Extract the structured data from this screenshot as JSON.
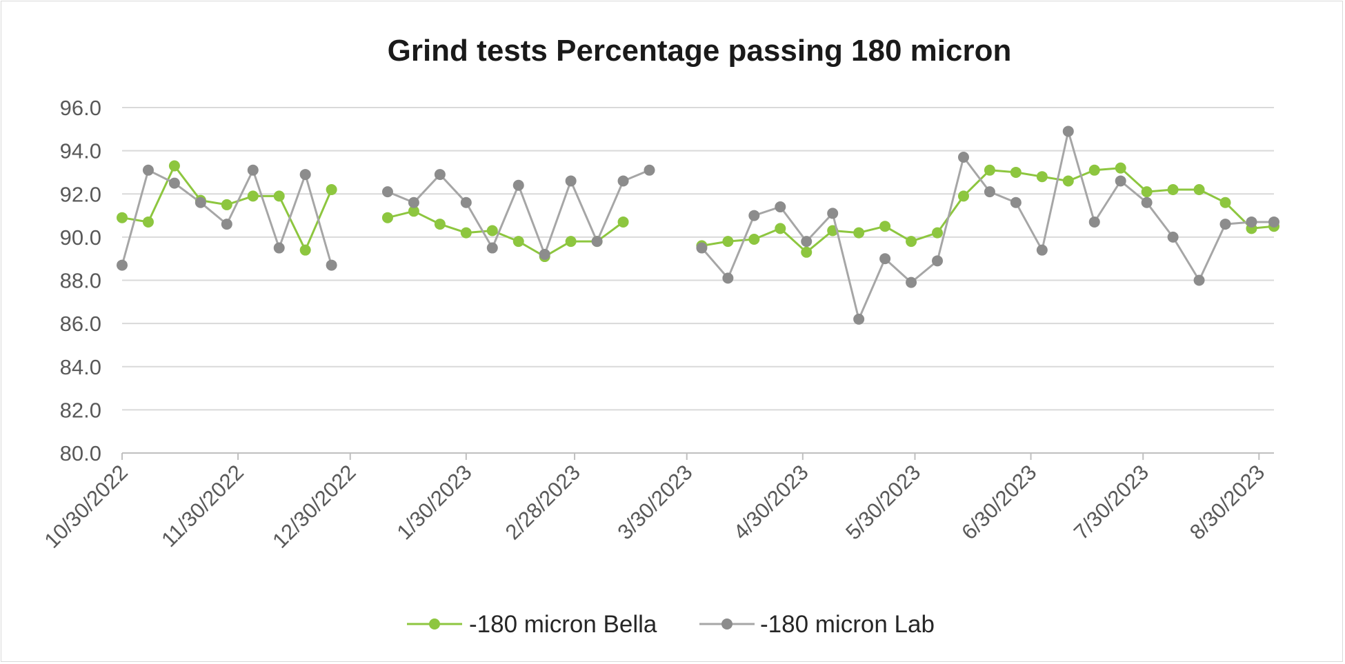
{
  "chart_data": {
    "type": "line",
    "title": "Grind tests Percentage passing 180 micron",
    "xlabel": "",
    "ylabel": "",
    "ylim": [
      80,
      96
    ],
    "yticks": [
      "80.0",
      "82.0",
      "84.0",
      "86.0",
      "88.0",
      "90.0",
      "92.0",
      "94.0",
      "96.0"
    ],
    "grid": true,
    "legend_position": "bottom",
    "x_date_range": [
      "2022-10-30",
      "2023-09-03"
    ],
    "xticks": [
      {
        "label": "10/30/2022",
        "date": "2022-10-30"
      },
      {
        "label": "11/30/2022",
        "date": "2022-11-30"
      },
      {
        "label": "12/30/2022",
        "date": "2022-12-30"
      },
      {
        "label": "1/30/2023",
        "date": "2023-01-30"
      },
      {
        "label": "2/28/2023",
        "date": "2023-02-28"
      },
      {
        "label": "3/30/2023",
        "date": "2023-03-30"
      },
      {
        "label": "4/30/2023",
        "date": "2023-04-30"
      },
      {
        "label": "5/30/2023",
        "date": "2023-05-30"
      },
      {
        "label": "6/30/2023",
        "date": "2023-06-30"
      },
      {
        "label": "7/30/2023",
        "date": "2023-07-30"
      },
      {
        "label": "8/30/2023",
        "date": "2023-08-30"
      }
    ],
    "series": [
      {
        "name": "-180 micron Bella",
        "color": "#8dc63f",
        "segments": [
          {
            "dates": [
              "2022-10-30",
              "2022-11-06",
              "2022-11-13",
              "2022-11-20",
              "2022-11-27",
              "2022-12-04",
              "2022-12-11",
              "2022-12-18",
              "2022-12-25"
            ],
            "values": [
              90.9,
              90.7,
              93.3,
              91.7,
              91.5,
              91.9,
              91.9,
              89.4,
              92.2
            ]
          },
          {
            "dates": [
              "2023-01-09",
              "2023-01-16",
              "2023-01-23",
              "2023-01-30",
              "2023-02-06",
              "2023-02-13",
              "2023-02-20",
              "2023-02-27",
              "2023-03-06",
              "2023-03-13"
            ],
            "values": [
              90.9,
              91.2,
              90.6,
              90.2,
              90.3,
              89.8,
              89.1,
              89.8,
              89.8,
              90.7
            ]
          },
          {
            "dates": [
              "2023-04-03",
              "2023-04-10",
              "2023-04-17",
              "2023-04-24",
              "2023-05-01",
              "2023-05-08",
              "2023-05-15",
              "2023-05-22",
              "2023-05-29",
              "2023-06-05",
              "2023-06-12",
              "2023-06-19",
              "2023-06-26",
              "2023-07-03",
              "2023-07-10",
              "2023-07-17",
              "2023-07-24",
              "2023-07-31",
              "2023-08-07",
              "2023-08-14",
              "2023-08-21",
              "2023-08-28",
              "2023-09-03"
            ],
            "values": [
              89.6,
              89.8,
              89.9,
              90.4,
              89.3,
              90.3,
              90.2,
              90.5,
              89.8,
              90.2,
              91.9,
              93.1,
              93.0,
              92.8,
              92.6,
              93.1,
              93.2,
              92.1,
              92.2,
              92.2,
              91.6,
              90.4,
              90.5
            ]
          }
        ]
      },
      {
        "name": "-180 micron Lab",
        "color": "#a6a6a6",
        "marker_color": "#8c8c8c",
        "segments": [
          {
            "dates": [
              "2022-10-30",
              "2022-11-06",
              "2022-11-13",
              "2022-11-20",
              "2022-11-27",
              "2022-12-04",
              "2022-12-11",
              "2022-12-18",
              "2022-12-25"
            ],
            "values": [
              88.7,
              93.1,
              92.5,
              91.6,
              90.6,
              93.1,
              89.5,
              92.9,
              88.7
            ]
          },
          {
            "dates": [
              "2023-01-09",
              "2023-01-16",
              "2023-01-23",
              "2023-01-30",
              "2023-02-06",
              "2023-02-13",
              "2023-02-20",
              "2023-02-27",
              "2023-03-06",
              "2023-03-13",
              "2023-03-20"
            ],
            "values": [
              92.1,
              91.6,
              92.9,
              91.6,
              89.5,
              92.4,
              89.2,
              92.6,
              89.8,
              92.6,
              93.1
            ]
          },
          {
            "dates": [
              "2023-04-03",
              "2023-04-10",
              "2023-04-17",
              "2023-04-24",
              "2023-05-01",
              "2023-05-08",
              "2023-05-15",
              "2023-05-22",
              "2023-05-29",
              "2023-06-05",
              "2023-06-12",
              "2023-06-19",
              "2023-06-26",
              "2023-07-03",
              "2023-07-10",
              "2023-07-17",
              "2023-07-24",
              "2023-07-31",
              "2023-08-07",
              "2023-08-14",
              "2023-08-21",
              "2023-08-28",
              "2023-09-03"
            ],
            "values": [
              89.5,
              88.1,
              91.0,
              91.4,
              89.8,
              91.1,
              86.2,
              89.0,
              87.9,
              88.9,
              93.7,
              92.1,
              91.6,
              89.4,
              94.9,
              90.7,
              92.6,
              91.6,
              90.0,
              88.0,
              90.6,
              90.7,
              90.7
            ]
          }
        ]
      }
    ]
  }
}
